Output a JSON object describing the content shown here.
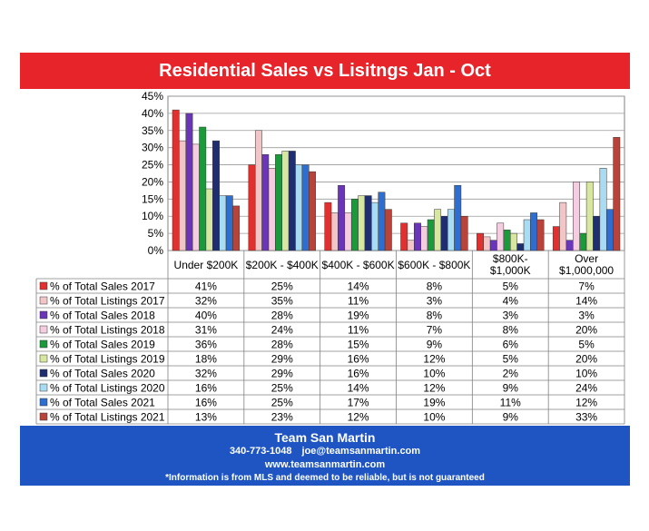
{
  "title": "Residential Sales vs Lisitngs Jan - Oct",
  "footer": {
    "team": "Team San Martin",
    "phone": "340-773-1048",
    "email": "joe@teamsanmartin.com",
    "website": "www.teamsanmartin.com",
    "disclaimer": "*Information is from MLS and deemed to be reliable, but is not guaranteed"
  },
  "chart_data": {
    "type": "bar",
    "categories": [
      "Under $200K",
      "$200K - $400K",
      "$400K - $600K",
      "$600K - $800K",
      "$800K-\n$1,000K",
      "Over\n$1,000,000"
    ],
    "y_ticks": [
      "0%",
      "5%",
      "10%",
      "15%",
      "20%",
      "25%",
      "30%",
      "35%",
      "40%",
      "45%"
    ],
    "ylim": [
      0,
      45
    ],
    "grid": true,
    "legend_placement": "table-below",
    "series": [
      {
        "name": "% of Total Sales 2017",
        "color": "#e03030",
        "values": [
          41,
          25,
          14,
          8,
          5,
          7
        ]
      },
      {
        "name": "% of Total Listings 2017",
        "color": "#f2c6c6",
        "values": [
          32,
          35,
          11,
          3,
          4,
          14
        ]
      },
      {
        "name": "% of Total Sales 2018",
        "color": "#6a35b8",
        "values": [
          40,
          28,
          19,
          8,
          3,
          3
        ]
      },
      {
        "name": "% of Total Listings 2018",
        "color": "#f6cde0",
        "values": [
          31,
          24,
          11,
          7,
          8,
          20
        ]
      },
      {
        "name": "% of Total Sales 2019",
        "color": "#1a9a3a",
        "values": [
          36,
          28,
          15,
          9,
          6,
          5
        ]
      },
      {
        "name": "% of Total Listings 2019",
        "color": "#d8e7a0",
        "values": [
          18,
          29,
          16,
          12,
          5,
          20
        ]
      },
      {
        "name": "% of Total Sales 2020",
        "color": "#1e2e70",
        "values": [
          32,
          29,
          16,
          10,
          2,
          10
        ]
      },
      {
        "name": "% of Total Listings 2020",
        "color": "#a8dcf2",
        "values": [
          16,
          25,
          14,
          12,
          9,
          24
        ]
      },
      {
        "name": "% of Total Sales 2021",
        "color": "#2f6ed1",
        "values": [
          16,
          25,
          17,
          19,
          11,
          12
        ]
      },
      {
        "name": "% of Total Listings 2021",
        "color": "#b8433a",
        "values": [
          13,
          23,
          12,
          10,
          9,
          33
        ]
      }
    ]
  }
}
